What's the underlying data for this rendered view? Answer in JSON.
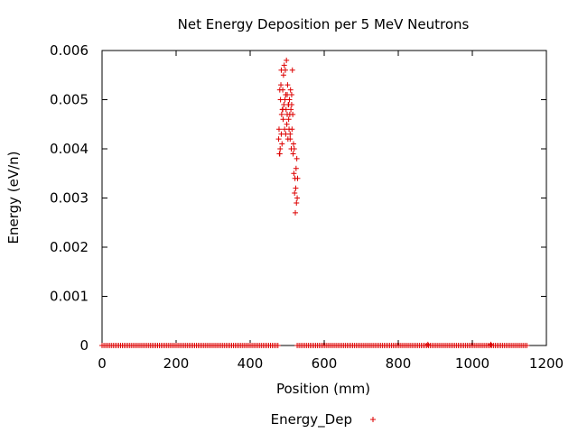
{
  "chart_data": {
    "type": "scatter",
    "title": "Net Energy Deposition per 5 MeV Neutrons",
    "xlabel": "Position (mm)",
    "ylabel": "Energy (eV/n)",
    "xlim": [
      0,
      1200
    ],
    "ylim": [
      0,
      0.006
    ],
    "xticks": [
      "0",
      "200",
      "400",
      "600",
      "800",
      "1000",
      "1200"
    ],
    "yticks": [
      "0",
      "0.001",
      "0.002",
      "0.003",
      "0.004",
      "0.005",
      "0.006"
    ],
    "grid": false,
    "legend": "bottom-center",
    "series": [
      {
        "name": "Energy_Dep",
        "color": "#dd0000",
        "marker": "plus",
        "baseline": {
          "y": 0,
          "ranges": [
            [
              0,
              475
            ],
            [
              527,
              1150
            ]
          ],
          "step_mm": 5
        },
        "points": [
          [
            477,
            0.0042
          ],
          [
            478,
            0.0044
          ],
          [
            479,
            0.0039
          ],
          [
            480,
            0.0052
          ],
          [
            481,
            0.004
          ],
          [
            482,
            0.005
          ],
          [
            483,
            0.0053
          ],
          [
            484,
            0.0056
          ],
          [
            485,
            0.0047
          ],
          [
            486,
            0.0041
          ],
          [
            487,
            0.0048
          ],
          [
            488,
            0.0052
          ],
          [
            489,
            0.0046
          ],
          [
            490,
            0.0055
          ],
          [
            491,
            0.0049
          ],
          [
            492,
            0.0057
          ],
          [
            493,
            0.0044
          ],
          [
            494,
            0.005
          ],
          [
            495,
            0.0056
          ],
          [
            496,
            0.0043
          ],
          [
            497,
            0.0048
          ],
          [
            498,
            0.0058
          ],
          [
            499,
            0.0045
          ],
          [
            500,
            0.0051
          ],
          [
            501,
            0.0053
          ],
          [
            502,
            0.0042
          ],
          [
            503,
            0.0049
          ],
          [
            504,
            0.0046
          ],
          [
            505,
            0.0044
          ],
          [
            506,
            0.005
          ],
          [
            507,
            0.0047
          ],
          [
            508,
            0.0043
          ],
          [
            509,
            0.0052
          ],
          [
            510,
            0.0048
          ],
          [
            511,
            0.004
          ],
          [
            512,
            0.0049
          ],
          [
            513,
            0.0044
          ],
          [
            514,
            0.0056
          ],
          [
            515,
            0.0047
          ],
          [
            516,
            0.0039
          ],
          [
            517,
            0.0041
          ],
          [
            518,
            0.0035
          ],
          [
            519,
            0.004
          ],
          [
            520,
            0.0031
          ],
          [
            521,
            0.0034
          ],
          [
            522,
            0.0027
          ],
          [
            523,
            0.0032
          ],
          [
            524,
            0.0036
          ],
          [
            525,
            0.0029
          ],
          [
            526,
            0.0038
          ],
          [
            527,
            0.003
          ],
          [
            528,
            0.0034
          ],
          [
            500,
            0.0047
          ],
          [
            496,
            0.0051
          ],
          [
            504,
            0.0049
          ],
          [
            512,
            0.0051
          ],
          [
            508,
            0.0042
          ],
          [
            488,
            0.0048
          ],
          [
            484,
            0.0043
          ],
          [
            480,
            0.0039
          ],
          [
            880,
            2e-05
          ],
          [
            1050,
            2e-05
          ]
        ]
      }
    ]
  }
}
